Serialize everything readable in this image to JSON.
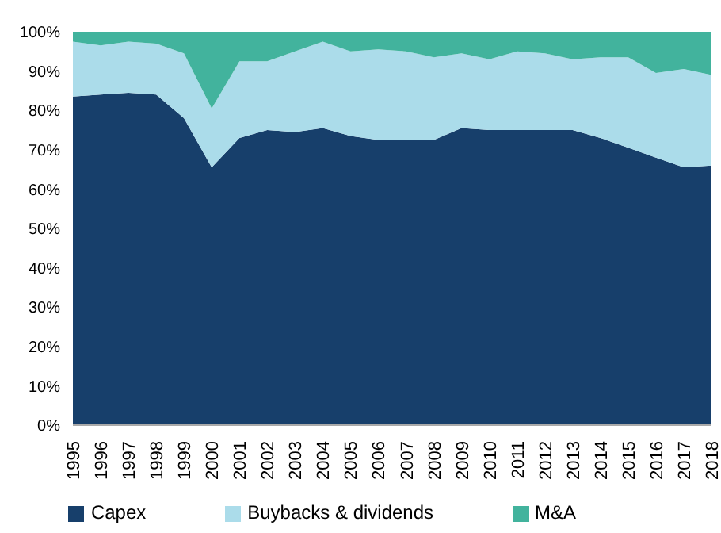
{
  "chart_data": {
    "type": "area",
    "stacked": true,
    "categories": [
      "1995",
      "1996",
      "1997",
      "1998",
      "1999",
      "2000",
      "2001",
      "2002",
      "2003",
      "2004",
      "2005",
      "2006",
      "2007",
      "2008",
      "2009",
      "2010",
      "2011",
      "2012",
      "2013",
      "2014",
      "2015",
      "2016",
      "2017",
      "2018"
    ],
    "series": [
      {
        "name": "Capex",
        "color": "#173f6b",
        "values": [
          83.5,
          84,
          84.5,
          84,
          78,
          65.5,
          73,
          75,
          74.5,
          75.5,
          73.5,
          72.5,
          72.5,
          72.5,
          75.5,
          75,
          75,
          75,
          75,
          73,
          70.5,
          68,
          65.5,
          66
        ]
      },
      {
        "name": "Buybacks & dividends",
        "color": "#abdcea",
        "values": [
          14,
          12.5,
          13,
          13,
          16.5,
          15,
          19.5,
          17.5,
          20.5,
          22,
          21.5,
          23,
          22.5,
          21,
          19,
          18,
          20,
          19.5,
          18,
          20.5,
          23,
          21.5,
          25,
          23
        ]
      },
      {
        "name": "M&A",
        "color": "#42b39d",
        "values": [
          2.5,
          3.5,
          2.5,
          3,
          5.5,
          19.5,
          7.5,
          7.5,
          5,
          2.5,
          5,
          4.5,
          5,
          6.5,
          5.5,
          7,
          5,
          5.5,
          7,
          6.5,
          6.5,
          10.5,
          9.5,
          11
        ]
      }
    ],
    "ylim": [
      0,
      100
    ],
    "yticks": [
      {
        "value": 0,
        "label": "0%"
      },
      {
        "value": 10,
        "label": "10%"
      },
      {
        "value": 20,
        "label": "20%"
      },
      {
        "value": 30,
        "label": "30%"
      },
      {
        "value": 40,
        "label": "40%"
      },
      {
        "value": 50,
        "label": "50%"
      },
      {
        "value": 60,
        "label": "60%"
      },
      {
        "value": 70,
        "label": "70%"
      },
      {
        "value": 80,
        "label": "80%"
      },
      {
        "value": 90,
        "label": "90%"
      },
      {
        "value": 100,
        "label": "100%"
      }
    ],
    "legend": "bottom"
  }
}
